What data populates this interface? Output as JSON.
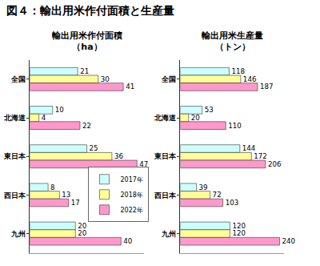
{
  "title": "図４：輸出用米作付面積と生産量",
  "chart_data": [
    {
      "type": "bar",
      "title": "輸出用米作付面積",
      "subtitle": "（ha）",
      "orientation": "horizontal",
      "data_labels": true,
      "tick_labels": "y",
      "grid": false,
      "legend": "lower right",
      "categories": [
        "全国",
        "北海道",
        "東日本",
        "西日本",
        "九州"
      ],
      "xlim": [
        0,
        50
      ],
      "series": [
        {
          "name": "2017年",
          "color": "#ccffff",
          "values": [
            21,
            10,
            25,
            8,
            20
          ]
        },
        {
          "name": "2018年",
          "color": "#ffff99",
          "values": [
            30,
            4,
            36,
            13,
            20
          ]
        },
        {
          "name": "2022年",
          "color": "#ff99cc",
          "values": [
            41,
            22,
            47,
            17,
            40
          ]
        }
      ]
    },
    {
      "type": "bar",
      "title": "輸出用米生産量",
      "subtitle": "（トン）",
      "orientation": "horizontal",
      "data_labels": true,
      "tick_labels": "y",
      "grid": false,
      "categories": [
        "全国",
        "北海道",
        "東日本",
        "西日本",
        "九州"
      ],
      "xlim": [
        0,
        250
      ],
      "series": [
        {
          "name": "2017年",
          "color": "#ccffff",
          "values": [
            118,
            53,
            144,
            39,
            120
          ]
        },
        {
          "name": "2018年",
          "color": "#ffff99",
          "values": [
            146,
            20,
            172,
            72,
            120
          ]
        },
        {
          "name": "2022年",
          "color": "#ff99cc",
          "values": [
            187,
            110,
            206,
            103,
            240
          ]
        }
      ]
    }
  ]
}
